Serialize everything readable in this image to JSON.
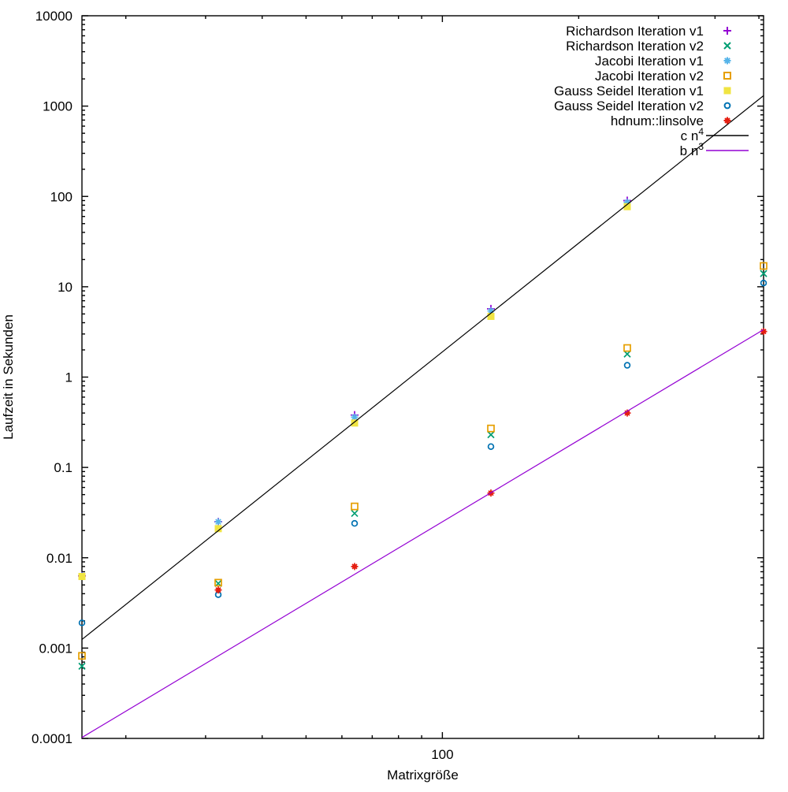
{
  "chart_data": {
    "type": "scatter",
    "title": "",
    "xlabel": "Matrixgröße",
    "ylabel": "Laufzeit in Sekunden",
    "x_scale": "log",
    "y_scale": "log",
    "xlim": [
      16,
      512
    ],
    "ylim": [
      0.0001,
      10000
    ],
    "grid": false,
    "legend_position": "top-right-inside",
    "x_major_ticks": [
      {
        "value": 100,
        "label": "100"
      }
    ],
    "x_minor_ticks": [
      20,
      30,
      40,
      50,
      60,
      70,
      80,
      90,
      200,
      300,
      400,
      500
    ],
    "y_major_ticks": [
      {
        "value": 10000,
        "label": "10000"
      },
      {
        "value": 1000,
        "label": "1000"
      },
      {
        "value": 100,
        "label": "100"
      },
      {
        "value": 10,
        "label": "10"
      },
      {
        "value": 1,
        "label": "1"
      },
      {
        "value": 0.1,
        "label": "0.1"
      },
      {
        "value": 0.01,
        "label": "0.01"
      },
      {
        "value": 0.001,
        "label": "0.001"
      },
      {
        "value": 0.0001,
        "label": "0.0001"
      }
    ],
    "y_minor_ticks_per_decade": [
      2,
      3,
      4,
      5,
      6,
      7,
      8,
      9
    ],
    "series": [
      {
        "name": "Richardson Iteration v1",
        "marker": "plus",
        "color": "#9400D3",
        "points": [
          [
            16,
            0.0063
          ],
          [
            32,
            0.025
          ],
          [
            64,
            0.38
          ],
          [
            128,
            5.7
          ],
          [
            256,
            90
          ]
        ]
      },
      {
        "name": "Richardson Iteration v2",
        "marker": "cross",
        "color": "#009E73",
        "points": [
          [
            16,
            0.00063
          ],
          [
            32,
            0.0052
          ],
          [
            64,
            0.031
          ],
          [
            128,
            0.23
          ],
          [
            256,
            1.8
          ],
          [
            512,
            14
          ]
        ]
      },
      {
        "name": "Jacobi Iteration v1",
        "marker": "asterisk",
        "color": "#56B4E9",
        "points": [
          [
            16,
            0.0063
          ],
          [
            32,
            0.025
          ],
          [
            64,
            0.36
          ],
          [
            128,
            5.4
          ],
          [
            256,
            86
          ]
        ]
      },
      {
        "name": "Jacobi Iteration v2",
        "marker": "open-square",
        "color": "#E69F00",
        "points": [
          [
            16,
            0.00082
          ],
          [
            32,
            0.0053
          ],
          [
            64,
            0.037
          ],
          [
            128,
            0.27
          ],
          [
            256,
            2.1
          ],
          [
            512,
            17
          ]
        ]
      },
      {
        "name": "Gauss Seidel Iteration v1",
        "marker": "filled-square",
        "color": "#F0E442",
        "points": [
          [
            16,
            0.0062
          ],
          [
            32,
            0.021
          ],
          [
            64,
            0.31
          ],
          [
            128,
            4.7
          ],
          [
            256,
            77
          ]
        ]
      },
      {
        "name": "Gauss Seidel Iteration v2",
        "marker": "open-circle",
        "color": "#0072B2",
        "points": [
          [
            16,
            0.0019
          ],
          [
            32,
            0.0039
          ],
          [
            64,
            0.024
          ],
          [
            128,
            0.17
          ],
          [
            256,
            1.35
          ],
          [
            512,
            11
          ]
        ]
      },
      {
        "name": "hdnum::linsolve",
        "marker": "burst",
        "color": "#E51E10",
        "points": [
          [
            32,
            0.0044
          ],
          [
            64,
            0.008
          ],
          [
            128,
            0.052
          ],
          [
            256,
            0.4
          ],
          [
            512,
            3.2
          ]
        ]
      }
    ],
    "ref_lines": [
      {
        "label_base": "c n",
        "label_sup": "4",
        "color": "#000000",
        "coeff": 1.9e-08,
        "power": 4
      },
      {
        "label_base": "b n",
        "label_sup": "3",
        "color": "#9400D3",
        "coeff": 2.5e-08,
        "power": 3
      }
    ],
    "colors": {
      "background": "#FFFFFF",
      "axis": "#000000",
      "text": "#000000"
    }
  }
}
